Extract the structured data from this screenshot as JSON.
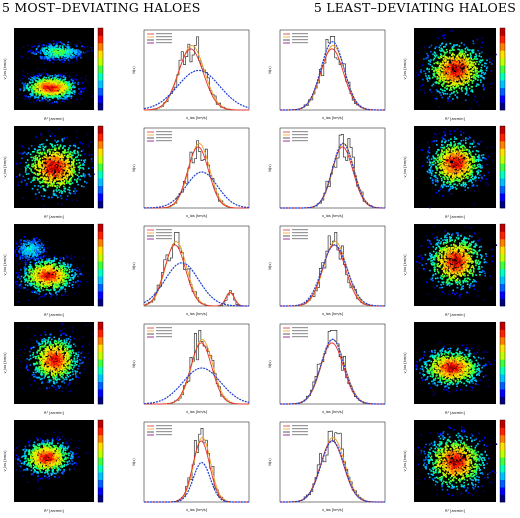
{
  "headers": {
    "left": "5 MOST–DEVIATING HALOES",
    "right": "5 LEAST–DEVIATING HALOES"
  },
  "colors": {
    "map_background": "#000000",
    "hist_bars": "#333333",
    "curve_red": "#e03030",
    "curve_orange": "#f0a020",
    "gaussian_blue": "#2040d0",
    "dots": "#800080"
  },
  "chart_data": [
    {
      "type": "heatmap",
      "panel": "most-row1-map",
      "row": 1,
      "group": "most",
      "ylabel": "v_los [km/s]",
      "xlabel": "R² [arcmin]",
      "blobs": [
        {
          "cx": 0.45,
          "cy": 0.72,
          "sx": 0.32,
          "sy": 0.14,
          "weight": 1.0
        },
        {
          "cx": 0.55,
          "cy": 0.28,
          "sx": 0.3,
          "sy": 0.1,
          "weight": 0.5
        }
      ]
    },
    {
      "type": "bar",
      "panel": "most-row1-hist",
      "row": 1,
      "group": "most",
      "xlabel": "v_los [km/s]",
      "ylabel": "N(v)",
      "peak": 0.45,
      "width": 0.12,
      "gauss_peak": 0.52,
      "gauss_width": 0.2,
      "gauss_amp": 0.55,
      "legend": true
    },
    {
      "type": "bar",
      "panel": "least-row1-hist",
      "row": 1,
      "group": "least",
      "xlabel": "v_los [km/s]",
      "ylabel": "N(v)",
      "peak": 0.5,
      "width": 0.11,
      "gauss_peak": 0.5,
      "gauss_width": 0.11,
      "gauss_amp": 0.95,
      "legend": true
    },
    {
      "type": "heatmap",
      "panel": "least-row1-map",
      "row": 1,
      "group": "least",
      "ylabel": "v_los [km/s]",
      "xlabel": "R² [arcmin]",
      "blobs": [
        {
          "cx": 0.5,
          "cy": 0.5,
          "sx": 0.36,
          "sy": 0.32,
          "weight": 1.0
        }
      ]
    },
    {
      "type": "heatmap",
      "panel": "most-row2-map",
      "row": 2,
      "group": "most",
      "ylabel": "v_los [km/s]",
      "xlabel": "R² [arcmin]",
      "blobs": [
        {
          "cx": 0.5,
          "cy": 0.5,
          "sx": 0.38,
          "sy": 0.32,
          "weight": 1.0
        }
      ]
    },
    {
      "type": "bar",
      "panel": "most-row2-hist",
      "row": 2,
      "group": "most",
      "xlabel": "v_los [km/s]",
      "ylabel": "N(v)",
      "peak": 0.52,
      "width": 0.1,
      "gauss_peak": 0.55,
      "gauss_width": 0.15,
      "gauss_amp": 0.5,
      "legend": true
    },
    {
      "type": "bar",
      "panel": "least-row2-hist",
      "row": 2,
      "group": "least",
      "xlabel": "v_los [km/s]",
      "ylabel": "N(v)",
      "peak": 0.6,
      "width": 0.1,
      "gauss_peak": 0.6,
      "gauss_width": 0.1,
      "gauss_amp": 0.9,
      "legend": true
    },
    {
      "type": "heatmap",
      "panel": "least-row2-map",
      "row": 2,
      "group": "least",
      "ylabel": "v_los [km/s]",
      "xlabel": "R² [arcmin]",
      "blobs": [
        {
          "cx": 0.5,
          "cy": 0.45,
          "sx": 0.32,
          "sy": 0.3,
          "weight": 1.0
        }
      ]
    },
    {
      "type": "heatmap",
      "panel": "most-row3-map",
      "row": 3,
      "group": "most",
      "ylabel": "v_los [km/s]",
      "xlabel": "R² [arcmin]",
      "blobs": [
        {
          "cx": 0.42,
          "cy": 0.62,
          "sx": 0.32,
          "sy": 0.2,
          "weight": 1.0
        },
        {
          "cx": 0.2,
          "cy": 0.3,
          "sx": 0.18,
          "sy": 0.12,
          "weight": 0.35
        }
      ]
    },
    {
      "type": "bar",
      "panel": "most-row3-hist",
      "row": 3,
      "group": "most",
      "xlabel": "v_los [km/s]",
      "ylabel": "N(v)",
      "peak": 0.3,
      "width": 0.1,
      "gauss_peak": 0.36,
      "gauss_width": 0.16,
      "gauss_amp": 0.6,
      "secondary_peak": 0.82,
      "legend": true
    },
    {
      "type": "bar",
      "panel": "least-row3-hist",
      "row": 3,
      "group": "least",
      "xlabel": "v_los [km/s]",
      "ylabel": "N(v)",
      "peak": 0.52,
      "width": 0.11,
      "gauss_peak": 0.52,
      "gauss_width": 0.12,
      "gauss_amp": 0.85,
      "legend": true
    },
    {
      "type": "heatmap",
      "panel": "least-row3-map",
      "row": 3,
      "group": "least",
      "ylabel": "v_los [km/s]",
      "xlabel": "R² [arcmin]",
      "blobs": [
        {
          "cx": 0.5,
          "cy": 0.45,
          "sx": 0.34,
          "sy": 0.32,
          "weight": 1.0
        }
      ]
    },
    {
      "type": "heatmap",
      "panel": "most-row4-map",
      "row": 4,
      "group": "most",
      "ylabel": "v_los [km/s]",
      "xlabel": "R² [arcmin]",
      "blobs": [
        {
          "cx": 0.5,
          "cy": 0.45,
          "sx": 0.3,
          "sy": 0.28,
          "weight": 1.0
        }
      ]
    },
    {
      "type": "bar",
      "panel": "most-row4-hist",
      "row": 4,
      "group": "most",
      "xlabel": "v_los [km/s]",
      "ylabel": "N(v)",
      "peak": 0.55,
      "width": 0.1,
      "gauss_peak": 0.55,
      "gauss_width": 0.18,
      "gauss_amp": 0.5,
      "legend": true
    },
    {
      "type": "bar",
      "panel": "least-row4-hist",
      "row": 4,
      "group": "least",
      "xlabel": "v_los [km/s]",
      "ylabel": "N(v)",
      "peak": 0.5,
      "width": 0.11,
      "gauss_peak": 0.5,
      "gauss_width": 0.11,
      "gauss_amp": 0.9,
      "legend": true
    },
    {
      "type": "heatmap",
      "panel": "least-row4-map",
      "row": 4,
      "group": "least",
      "ylabel": "v_los [km/s]",
      "xlabel": "R² [arcmin]",
      "blobs": [
        {
          "cx": 0.45,
          "cy": 0.55,
          "sx": 0.36,
          "sy": 0.22,
          "weight": 1.0
        }
      ]
    },
    {
      "type": "heatmap",
      "panel": "most-row5-map",
      "row": 5,
      "group": "most",
      "ylabel": "v_los [km/s]",
      "xlabel": "R² [arcmin]",
      "blobs": [
        {
          "cx": 0.4,
          "cy": 0.45,
          "sx": 0.3,
          "sy": 0.2,
          "weight": 1.0
        }
      ]
    },
    {
      "type": "bar",
      "panel": "most-row5-hist",
      "row": 5,
      "group": "most",
      "xlabel": "v_los [km/s]",
      "ylabel": "N(v)",
      "peak": 0.55,
      "width": 0.08,
      "gauss_peak": 0.55,
      "gauss_width": 0.08,
      "gauss_amp": 0.55,
      "legend": true
    },
    {
      "type": "bar",
      "panel": "least-row5-hist",
      "row": 5,
      "group": "least",
      "xlabel": "v_los [km/s]",
      "ylabel": "N(v)",
      "peak": 0.5,
      "width": 0.11,
      "gauss_peak": 0.5,
      "gauss_width": 0.11,
      "gauss_amp": 0.85,
      "legend": true
    },
    {
      "type": "heatmap",
      "panel": "least-row5-map",
      "row": 5,
      "group": "least",
      "ylabel": "v_los [km/s]",
      "xlabel": "R² [arcmin]",
      "blobs": [
        {
          "cx": 0.5,
          "cy": 0.5,
          "sx": 0.36,
          "sy": 0.32,
          "weight": 1.0
        }
      ]
    }
  ]
}
